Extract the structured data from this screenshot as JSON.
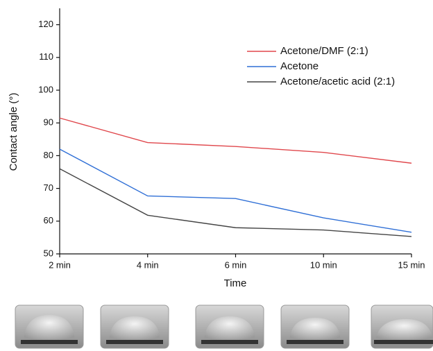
{
  "chart_data": {
    "type": "line",
    "x_label": "Time",
    "y_label": "Contact angle (°)",
    "categories": [
      "2 min",
      "4 min",
      "6 min",
      "10 min",
      "15 min"
    ],
    "series": [
      {
        "name": "Acetone/DMF (2:1)",
        "color": "#e0474c",
        "values": [
          91.5,
          84,
          82.8,
          81,
          77.7
        ]
      },
      {
        "name": "Acetone",
        "color": "#2f6fd6",
        "values": [
          82,
          67.7,
          66.9,
          61,
          56.6
        ]
      },
      {
        "name": "Acetone/acetic acid (2:1)",
        "color": "#444444",
        "values": [
          76,
          61.8,
          58,
          57.3,
          55.3
        ]
      }
    ],
    "ylim": [
      50,
      125
    ],
    "yticks": [
      50,
      60,
      70,
      80,
      90,
      100,
      110,
      120
    ],
    "legend": "upper right",
    "grid": false
  }
}
